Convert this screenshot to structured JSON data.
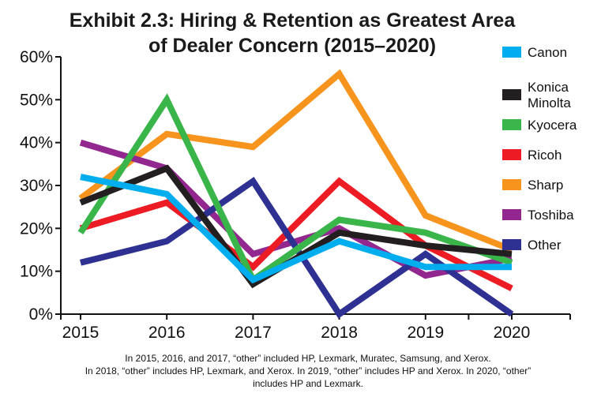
{
  "title_line1": "Exhibit 2.3: Hiring & Retention as Greatest Area",
  "title_line2": "of Dealer Concern (2015–2020)",
  "footnote_line1": "In 2015, 2016, and 2017, “other” included HP, Lexmark, Muratec, Samsung, and Xerox.",
  "footnote_line2": "In 2018, “other” includes HP, Lexmark, and Xerox. In 2019, “other” includes HP and Xerox. In 2020, “other”",
  "footnote_line3": "includes HP and Lexmark.",
  "chart_data": {
    "type": "line",
    "x": [
      "2015",
      "2016",
      "2017",
      "2018",
      "2019",
      "2020"
    ],
    "yticks": [
      "0%",
      "10%",
      "20%",
      "30%",
      "40%",
      "50%",
      "60%"
    ],
    "ylim": [
      0,
      60
    ],
    "grid": false,
    "legend_position": "right",
    "series": [
      {
        "name": "Sharp",
        "color": "#F7941D",
        "values": [
          27,
          42,
          39,
          56,
          23,
          15
        ]
      },
      {
        "name": "Toshiba",
        "color": "#92278F",
        "values": [
          40,
          34,
          14,
          20,
          9,
          13
        ]
      },
      {
        "name": "Ricoh",
        "color": "#ED1C24",
        "values": [
          20,
          26,
          11,
          31,
          16,
          6
        ]
      },
      {
        "name": "Other",
        "color": "#2E3192",
        "values": [
          12,
          17,
          31,
          0,
          14,
          0
        ]
      },
      {
        "name": "Kyocera",
        "color": "#39B54A",
        "values": [
          19,
          50,
          8,
          22,
          19,
          12
        ]
      },
      {
        "name": "Konica\nMinolta",
        "color": "#231F20",
        "values": [
          26,
          34,
          7,
          19,
          16,
          14
        ]
      },
      {
        "name": "Canon",
        "color": "#00AEEF",
        "values": [
          32,
          28,
          8,
          17,
          11,
          11
        ]
      }
    ],
    "legend_order": [
      "Canon",
      "Konica\nMinolta",
      "Kyocera",
      "Ricoh",
      "Sharp",
      "Toshiba",
      "Other"
    ]
  }
}
